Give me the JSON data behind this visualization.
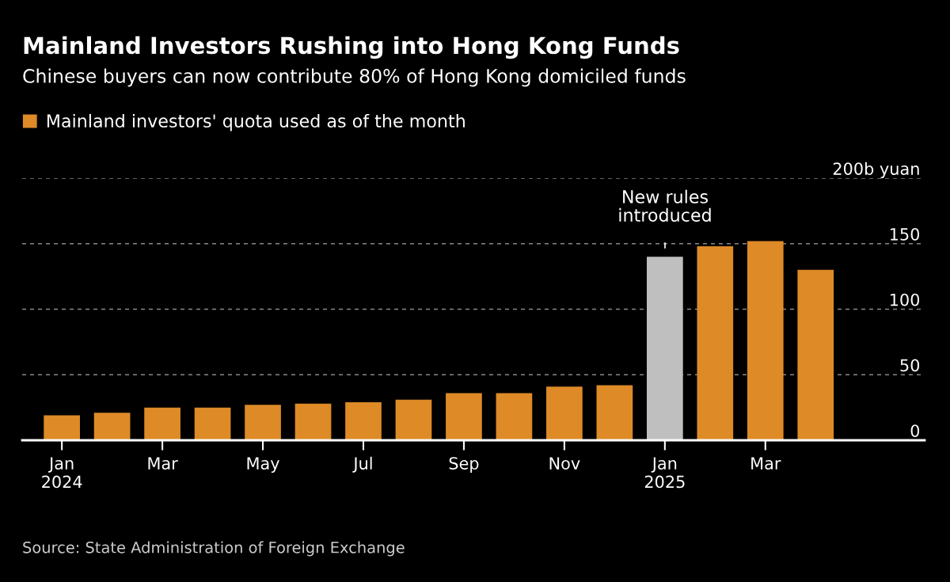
{
  "chart_data": {
    "type": "bar",
    "title": "Mainland Investors Rushing into Hong Kong Funds",
    "subtitle": "Chinese buyers can now contribute 80% of Hong Kong domiciled funds",
    "categories": [
      "Jan\n2024",
      null,
      "Mar",
      null,
      "May",
      null,
      "Jul",
      null,
      "Sep",
      null,
      "Nov",
      null,
      "Jan\n2025",
      null,
      "Mar",
      null
    ],
    "series": [
      {
        "name": "Mainland investors' quota used as of the month",
        "color": "#dd8a27",
        "colors": [
          "#dd8a27",
          "#dd8a27",
          "#dd8a27",
          "#dd8a27",
          "#dd8a27",
          "#dd8a27",
          "#dd8a27",
          "#dd8a27",
          "#dd8a27",
          "#dd8a27",
          "#dd8a27",
          "#dd8a27",
          "#bfbfbf",
          "#dd8a27",
          "#dd8a27",
          "#dd8a27"
        ],
        "values": [
          19,
          21,
          25,
          25,
          27,
          28,
          29,
          31,
          36,
          36,
          41,
          42,
          140,
          148,
          152,
          130
        ]
      }
    ],
    "ylim": [
      0,
      200
    ],
    "yticks": [
      0,
      50,
      100,
      150,
      {
        "value": 200,
        "label": "200b yuan"
      }
    ],
    "grid": "y",
    "legend": "top left",
    "annotations": [
      "New rules\nintroduced",
      "Source: State Administration of Foreign Exchange"
    ]
  }
}
